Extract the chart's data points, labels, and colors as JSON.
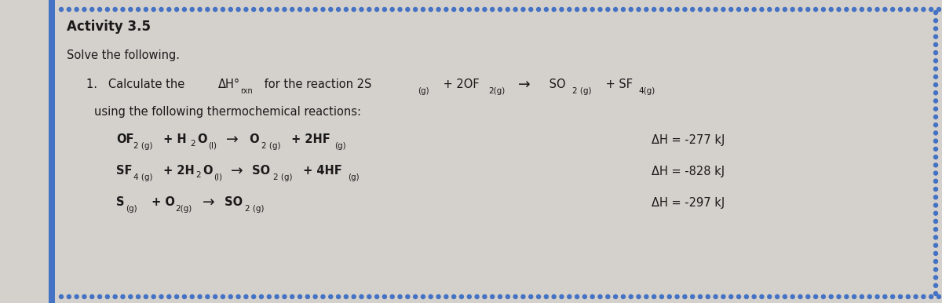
{
  "bg_color": "#d4d0cb",
  "border_color": "#4472c4",
  "dot_color": "#4472c4",
  "title": "Activity 3.5",
  "subtitle": "Solve the following.",
  "rxn1_dh": "ΔH = -277 kJ",
  "rxn2_dh": "ΔH = -828 kJ",
  "rxn3_dh": "ΔH = -297 kJ",
  "text_color": "#1a1a1a",
  "title_fontsize": 12,
  "body_fontsize": 10.5,
  "chem_fontsize": 10.5,
  "sub_fontsize": 7.5
}
